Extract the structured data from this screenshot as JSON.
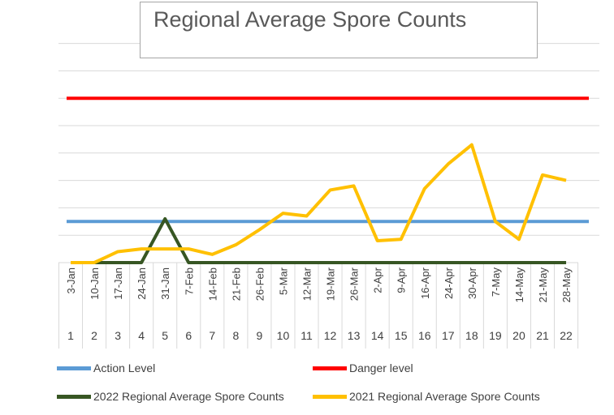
{
  "chart_data": {
    "type": "line",
    "title": "Regional Average Spore Counts",
    "categories": [
      "3-Jan",
      "10-Jan",
      "17-Jan",
      "24-Jan",
      "31-Jan",
      "7-Feb",
      "14-Feb",
      "21-Feb",
      "26-Feb",
      "5-Mar",
      "12-Mar",
      "19-Mar",
      "26-Mar",
      "2-Apr",
      "9-Apr",
      "16-Apr",
      "24-Apr",
      "30-Apr",
      "7-May",
      "14-May",
      "21-May",
      "28-May"
    ],
    "index_labels": [
      "1",
      "2",
      "3",
      "4",
      "5",
      "6",
      "7",
      "8",
      "9",
      "10",
      "11",
      "12",
      "13",
      "14",
      "15",
      "16",
      "17",
      "18",
      "19",
      "20",
      "21",
      "22"
    ],
    "ylim": [
      0,
      8
    ],
    "grid": true,
    "legend_position": "bottom",
    "series": [
      {
        "name": "Action Level",
        "color": "#5b9bd5",
        "values": [
          1.5,
          1.5,
          1.5,
          1.5,
          1.5,
          1.5,
          1.5,
          1.5,
          1.5,
          1.5,
          1.5,
          1.5,
          1.5,
          1.5,
          1.5,
          1.5,
          1.5,
          1.5,
          1.5,
          1.5,
          1.5,
          1.5
        ]
      },
      {
        "name": "Danger level",
        "color": "#ff0000",
        "values": [
          6,
          6,
          6,
          6,
          6,
          6,
          6,
          6,
          6,
          6,
          6,
          6,
          6,
          6,
          6,
          6,
          6,
          6,
          6,
          6,
          6,
          6
        ]
      },
      {
        "name": "2022 Regional Average Spore Counts",
        "color": "#375623",
        "values": [
          0,
          0,
          0,
          0,
          1.6,
          0,
          0,
          0,
          0,
          0,
          0,
          0,
          0,
          0,
          0,
          0,
          0,
          0,
          0,
          0,
          0,
          0
        ]
      },
      {
        "name": "2021 Regional Average Spore Counts",
        "color": "#ffc000",
        "values": [
          0,
          0,
          0.4,
          0.5,
          0.5,
          0.5,
          0.3,
          0.65,
          1.2,
          1.8,
          1.7,
          2.65,
          2.8,
          0.8,
          0.85,
          2.7,
          3.6,
          4.3,
          1.5,
          0.85,
          3.2,
          3.0
        ]
      }
    ]
  }
}
